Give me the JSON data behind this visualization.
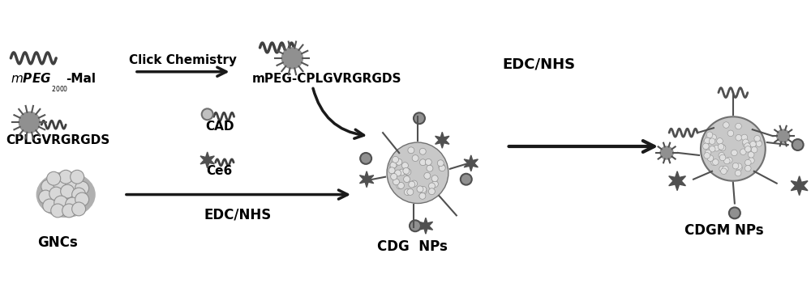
{
  "background_color": "#ffffff",
  "text_color": "#000000",
  "dark_gray": "#404040",
  "medium_gray": "#808080",
  "light_gray": "#b0b0b0",
  "very_light_gray": "#d0d0d0",
  "labels": {
    "mpeg_mal": "mPEG",
    "mpeg_mal_sub": "2000",
    "mpeg_mal_suffix": "-Mal",
    "click_chemistry": "Click Chemistry",
    "cplgvrgrgds": "CPLGVRGRGDS",
    "mpeg_cplg": "mPEG-CPLGVRGRGDS",
    "edc_nhs_top": "EDC/NHS",
    "cad": "CAD",
    "ce6": "Ce6",
    "edc_nhs_bottom": "EDC/NHS",
    "gncs": "GNCs",
    "cdg_nps": "CDG  NPs",
    "cdgm_nps": "CDGM NPs"
  },
  "arrow_color": "#1a1a1a",
  "figsize": [
    10.0,
    3.66
  ],
  "dpi": 100
}
